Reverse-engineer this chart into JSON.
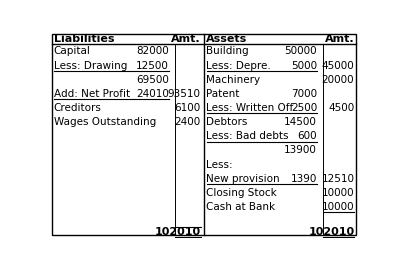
{
  "bg_color": "#ffffff",
  "font_size": 7.5,
  "liabilities": [
    {
      "label": "Capital",
      "c1": "82000",
      "c2": "",
      "ul_c1": false,
      "ul_c2": false
    },
    {
      "label": "Less: Drawing",
      "c1": "12500",
      "c2": "",
      "ul_c1": true,
      "ul_c2": false
    },
    {
      "label": "",
      "c1": "69500",
      "c2": "",
      "ul_c1": false,
      "ul_c2": false
    },
    {
      "label": "Add: Net Profit",
      "c1": "24010",
      "c2": "93510",
      "ul_c1": true,
      "ul_c2": false
    },
    {
      "label": "Creditors",
      "c1": "",
      "c2": "6100",
      "ul_c1": false,
      "ul_c2": false
    },
    {
      "label": "Wages Outstanding",
      "c1": "",
      "c2": "2400",
      "ul_c1": false,
      "ul_c2": false
    },
    {
      "label": "",
      "c1": "",
      "c2": "",
      "ul_c1": false,
      "ul_c2": false
    },
    {
      "label": "",
      "c1": "",
      "c2": "",
      "ul_c1": false,
      "ul_c2": false
    },
    {
      "label": "",
      "c1": "",
      "c2": "",
      "ul_c1": false,
      "ul_c2": false
    },
    {
      "label": "",
      "c1": "",
      "c2": "",
      "ul_c1": false,
      "ul_c2": false
    },
    {
      "label": "",
      "c1": "",
      "c2": "",
      "ul_c1": false,
      "ul_c2": false
    },
    {
      "label": "",
      "c1": "",
      "c2": "",
      "ul_c1": false,
      "ul_c2": false
    },
    {
      "label": "",
      "c1": "",
      "c2": "",
      "ul_c1": false,
      "ul_c2": false
    }
  ],
  "assets": [
    {
      "label": "Building",
      "c1": "50000",
      "c2": "",
      "ul_c1": false,
      "ul_c2": false
    },
    {
      "label": "Less: Depre.",
      "c1": "5000",
      "c2": "45000",
      "ul_c1": true,
      "ul_c2": false
    },
    {
      "label": "Machinery",
      "c1": "",
      "c2": "20000",
      "ul_c1": false,
      "ul_c2": false
    },
    {
      "label": "Patent",
      "c1": "7000",
      "c2": "",
      "ul_c1": false,
      "ul_c2": false
    },
    {
      "label": "Less: Written Off",
      "c1": "2500",
      "c2": "4500",
      "ul_c1": true,
      "ul_c2": false
    },
    {
      "label": "Debtors",
      "c1": "14500",
      "c2": "",
      "ul_c1": false,
      "ul_c2": false
    },
    {
      "label": "Less: Bad debts",
      "c1": "600",
      "c2": "",
      "ul_c1": true,
      "ul_c2": false
    },
    {
      "label": "",
      "c1": "13900",
      "c2": "",
      "ul_c1": false,
      "ul_c2": false
    },
    {
      "label": "Less:",
      "c1": "",
      "c2": "",
      "ul_c1": false,
      "ul_c2": false
    },
    {
      "label": "New provision",
      "c1": "1390",
      "c2": "12510",
      "ul_c1": true,
      "ul_c2": false
    },
    {
      "label": "Closing Stock",
      "c1": "",
      "c2": "10000",
      "ul_c1": false,
      "ul_c2": false
    },
    {
      "label": "Cash at Bank",
      "c1": "",
      "c2": "10000",
      "ul_c1": false,
      "ul_c2": true
    },
    {
      "label": "",
      "c1": "",
      "c2": "",
      "ul_c1": false,
      "ul_c2": false
    }
  ],
  "liab_total": "102010",
  "asset_total": "102010",
  "liab_ul_before_total": true,
  "n_rows": 13
}
